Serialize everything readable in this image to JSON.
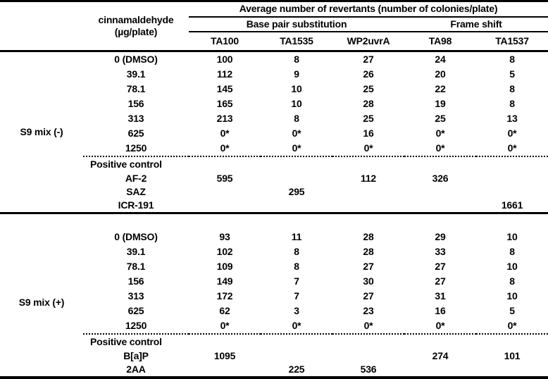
{
  "table": {
    "header": {
      "group_title": "Average number of revertants (number of colonies/plate)",
      "substance": "cinnamaldehyde",
      "substance_unit": "(µg/plate)",
      "bps_label": "Base pair substitution",
      "fs_label": "Frame shift",
      "strains": [
        "TA100",
        "TA1535",
        "WP2uvrA",
        "TA98",
        "TA1537"
      ]
    },
    "sections": [
      {
        "label": "S9 mix (-)",
        "rows": [
          {
            "dose": "0 (DMSO)",
            "values": [
              "100",
              "8",
              "27",
              "24",
              "8"
            ]
          },
          {
            "dose": "39.1",
            "values": [
              "112",
              "9",
              "26",
              "20",
              "5"
            ]
          },
          {
            "dose": "78.1",
            "values": [
              "145",
              "10",
              "25",
              "22",
              "8"
            ]
          },
          {
            "dose": "156",
            "values": [
              "165",
              "10",
              "28",
              "19",
              "8"
            ]
          },
          {
            "dose": "313",
            "values": [
              "213",
              "8",
              "25",
              "25",
              "13"
            ]
          },
          {
            "dose": "625",
            "values": [
              "0*",
              "0*",
              "16",
              "0*",
              "0*"
            ]
          },
          {
            "dose": "1250",
            "values": [
              "0*",
              "0*",
              "0*",
              "0*",
              "0*"
            ]
          }
        ],
        "pc_label": "Positive control",
        "controls": [
          {
            "name": "AF-2",
            "values": [
              "595",
              "",
              "112",
              "326",
              ""
            ]
          },
          {
            "name": "SAZ",
            "values": [
              "",
              "295",
              "",
              "",
              ""
            ]
          },
          {
            "name": "ICR-191",
            "values": [
              "",
              "",
              "",
              "",
              "1661"
            ]
          }
        ]
      },
      {
        "label": "S9 mix (+)",
        "rows": [
          {
            "dose": "0 (DMSO)",
            "values": [
              "93",
              "11",
              "28",
              "29",
              "10"
            ]
          },
          {
            "dose": "39.1",
            "values": [
              "102",
              "8",
              "28",
              "33",
              "8"
            ]
          },
          {
            "dose": "78.1",
            "values": [
              "109",
              "8",
              "27",
              "27",
              "10"
            ]
          },
          {
            "dose": "156",
            "values": [
              "149",
              "7",
              "30",
              "27",
              "8"
            ]
          },
          {
            "dose": "313",
            "values": [
              "172",
              "7",
              "27",
              "31",
              "10"
            ]
          },
          {
            "dose": "625",
            "values": [
              "62",
              "3",
              "23",
              "16",
              "5"
            ]
          },
          {
            "dose": "1250",
            "values": [
              "0*",
              "0*",
              "0*",
              "0*",
              "0*"
            ]
          }
        ],
        "pc_label": "Positive control",
        "controls": [
          {
            "name": "B[a]P",
            "values": [
              "1095",
              "",
              "",
              "274",
              "101"
            ]
          },
          {
            "name": "2AA",
            "values": [
              "",
              "225",
              "536",
              "",
              ""
            ]
          }
        ]
      }
    ]
  }
}
